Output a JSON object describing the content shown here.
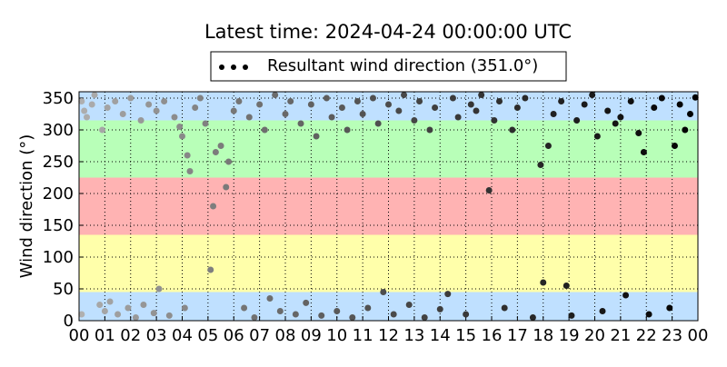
{
  "chart_data": {
    "type": "scatter",
    "title": "Latest time: 2024-04-24 00:00:00 UTC",
    "ylabel": "Wind direction (°)",
    "xlim": [
      0,
      24
    ],
    "ylim": [
      0,
      360
    ],
    "xticks": [
      {
        "value": 0,
        "label": "00"
      },
      {
        "value": 1,
        "label": "01"
      },
      {
        "value": 2,
        "label": "02"
      },
      {
        "value": 3,
        "label": "03"
      },
      {
        "value": 4,
        "label": "04"
      },
      {
        "value": 5,
        "label": "05"
      },
      {
        "value": 6,
        "label": "06"
      },
      {
        "value": 7,
        "label": "07"
      },
      {
        "value": 8,
        "label": "08"
      },
      {
        "value": 9,
        "label": "09"
      },
      {
        "value": 10,
        "label": "10"
      },
      {
        "value": 11,
        "label": "11"
      },
      {
        "value": 12,
        "label": "12"
      },
      {
        "value": 13,
        "label": "13"
      },
      {
        "value": 14,
        "label": "14"
      },
      {
        "value": 15,
        "label": "15"
      },
      {
        "value": 16,
        "label": "16"
      },
      {
        "value": 17,
        "label": "17"
      },
      {
        "value": 18,
        "label": "18"
      },
      {
        "value": 19,
        "label": "19"
      },
      {
        "value": 20,
        "label": "20"
      },
      {
        "value": 21,
        "label": "21"
      },
      {
        "value": 22,
        "label": "22"
      },
      {
        "value": 23,
        "label": "23"
      },
      {
        "value": 24,
        "label": "00"
      }
    ],
    "yticks": [
      0,
      50,
      100,
      150,
      200,
      250,
      300,
      350
    ],
    "grid": true,
    "bands": [
      {
        "from": 0,
        "to": 45,
        "color": "#bfe0ff"
      },
      {
        "from": 45,
        "to": 135,
        "color": "#ffffaa"
      },
      {
        "from": 135,
        "to": 225,
        "color": "#ffb3b3"
      },
      {
        "from": 225,
        "to": 315,
        "color": "#b8ffb8"
      },
      {
        "from": 315,
        "to": 360,
        "color": "#bfe0ff"
      }
    ],
    "series": [
      {
        "name": "Resultant wind direction (351.0°)",
        "color_range": [
          "#b0b0b0",
          "#000000"
        ],
        "x": [
          0.1,
          0.1,
          0.2,
          0.3,
          0.5,
          0.6,
          0.8,
          0.9,
          1.0,
          1.1,
          1.2,
          1.4,
          1.5,
          1.7,
          1.9,
          2.0,
          2.2,
          2.4,
          2.5,
          2.7,
          2.9,
          3.0,
          3.1,
          3.3,
          3.5,
          3.7,
          3.9,
          4.0,
          4.1,
          4.2,
          4.3,
          4.5,
          4.7,
          4.9,
          5.1,
          5.2,
          5.3,
          5.5,
          5.7,
          5.8,
          6.0,
          6.2,
          6.4,
          6.6,
          6.8,
          7.0,
          7.2,
          7.4,
          7.6,
          7.8,
          8.0,
          8.2,
          8.4,
          8.6,
          8.8,
          9.0,
          9.2,
          9.4,
          9.6,
          9.8,
          10.0,
          10.2,
          10.4,
          10.6,
          10.8,
          11.0,
          11.2,
          11.4,
          11.6,
          11.8,
          12.0,
          12.2,
          12.4,
          12.6,
          12.8,
          13.0,
          13.2,
          13.4,
          13.6,
          13.8,
          14.0,
          14.3,
          14.5,
          14.7,
          15.0,
          15.2,
          15.4,
          15.6,
          15.9,
          16.1,
          16.3,
          16.5,
          16.8,
          17.0,
          17.3,
          17.6,
          17.9,
          18.0,
          18.2,
          18.4,
          18.7,
          18.9,
          19.1,
          19.3,
          19.6,
          19.9,
          20.1,
          20.3,
          20.5,
          20.8,
          21.0,
          21.2,
          21.4,
          21.7,
          21.9,
          22.1,
          22.3,
          22.6,
          22.9,
          23.1,
          23.3,
          23.5,
          23.7,
          23.9
        ],
        "values": [
          10,
          345,
          330,
          320,
          340,
          355,
          25,
          300,
          15,
          335,
          30,
          345,
          10,
          325,
          20,
          350,
          5,
          315,
          25,
          340,
          12,
          330,
          50,
          345,
          8,
          320,
          305,
          290,
          20,
          260,
          235,
          335,
          350,
          310,
          80,
          180,
          265,
          275,
          210,
          250,
          330,
          345,
          20,
          320,
          5,
          340,
          300,
          35,
          355,
          15,
          325,
          345,
          10,
          310,
          28,
          340,
          290,
          8,
          350,
          320,
          15,
          335,
          300,
          5,
          345,
          325,
          20,
          350,
          310,
          45,
          340,
          10,
          330,
          355,
          25,
          315,
          345,
          5,
          300,
          335,
          18,
          42,
          350,
          320,
          10,
          340,
          330,
          355,
          205,
          315,
          345,
          20,
          300,
          335,
          350,
          5,
          245,
          60,
          275,
          325,
          345,
          55,
          8,
          315,
          340,
          355,
          290,
          15,
          330,
          310,
          320,
          40,
          345,
          295,
          265,
          10,
          335,
          350,
          20,
          275,
          340,
          300,
          325,
          351
        ]
      }
    ]
  }
}
